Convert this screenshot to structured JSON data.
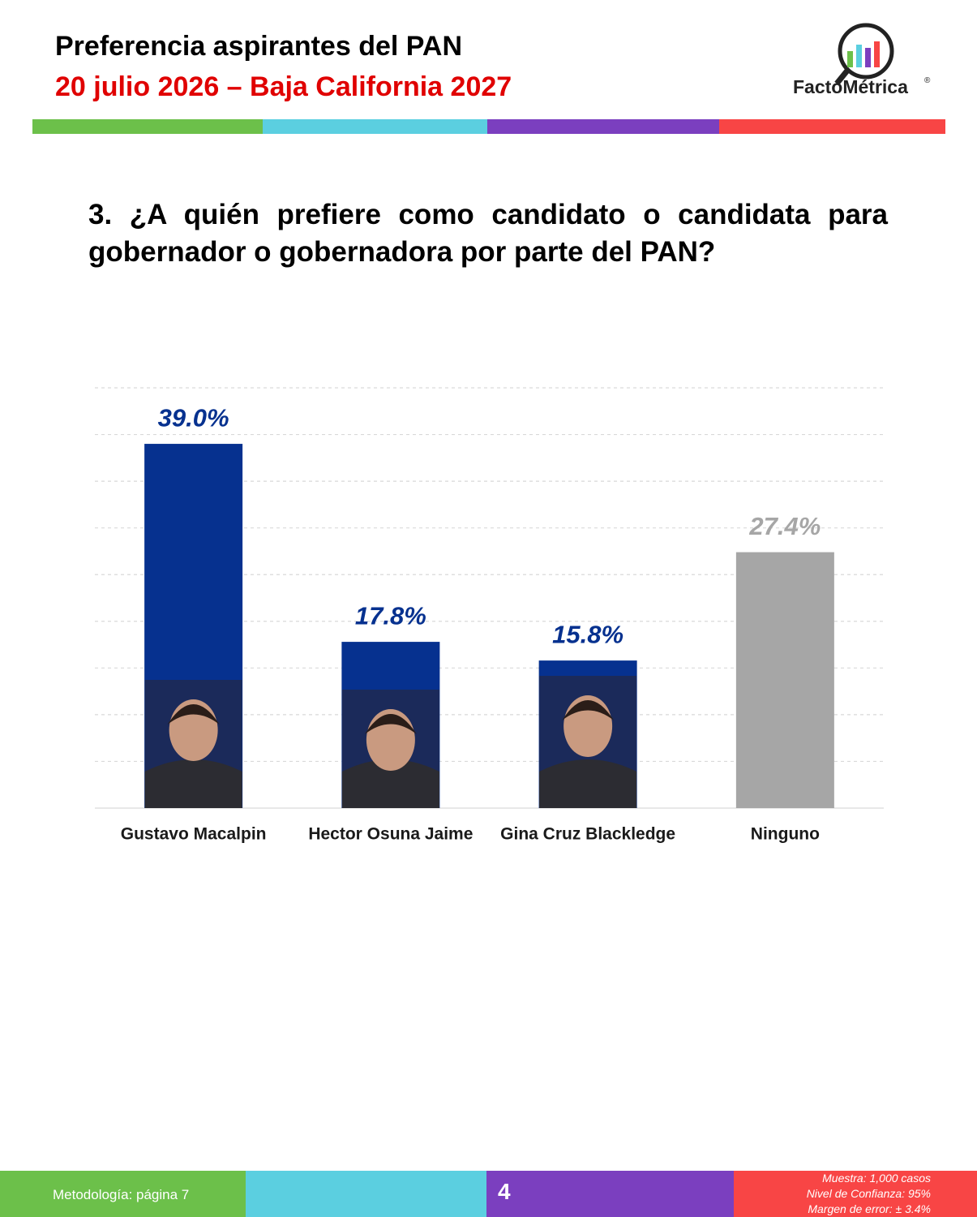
{
  "header": {
    "title": "Preferencia aspirantes del PAN",
    "subtitle": "20 julio 2026 – Baja California 2027",
    "logo": "FactoMétrica",
    "logo_mark": "®"
  },
  "question": "3. ¿A quién prefiere como candidato o candidata para gobernador o gobernadora por parte del PAN?",
  "chart_data": {
    "type": "bar",
    "categories": [
      "Gustavo Macalpin",
      "Hector Osuna Jaime",
      "Gina Cruz Blackledge",
      "Ninguno"
    ],
    "values": [
      39.0,
      17.8,
      15.8,
      27.4
    ],
    "value_labels": [
      "39.0%",
      "17.8%",
      "15.8%",
      "27.4%"
    ],
    "colors": [
      "#06318f",
      "#06318f",
      "#06318f",
      "#a6a6a6"
    ],
    "ylim": [
      0,
      45
    ],
    "yticks": [
      0,
      5,
      10,
      15,
      20,
      25,
      30,
      35,
      40,
      45
    ],
    "grid": true
  },
  "footer": {
    "methodology": "Metodología: página 7",
    "page": "4",
    "notes": [
      "Muestra:  1,000 casos",
      "Nivel de Confianza: 95%",
      "Margen de error: ± 3.4%"
    ]
  }
}
